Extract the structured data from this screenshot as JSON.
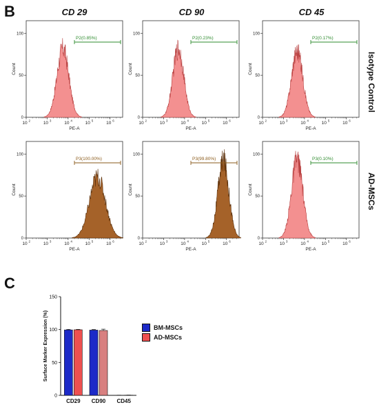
{
  "panels": {
    "b_label": "B",
    "c_label": "C"
  },
  "column_titles": [
    "CD 29",
    "CD 90",
    "CD 45"
  ],
  "row_titles": [
    "Isotype Control",
    "AD-MSCs"
  ],
  "colors": {
    "control_fill": "#f28a8a",
    "control_edge": "#b84040",
    "positive_fill": "#a05a1e",
    "positive_edge": "#5a2e08",
    "gate_green": "#2e8b2e",
    "gate_brown": "#8a5a1a",
    "bm_bar": "#1c2ac8",
    "ad_bar": "#ee5050",
    "ad_bar_faded": "#d88080"
  },
  "histograms": [
    {
      "row": 0,
      "col": 0,
      "gate_label": "P2(0.85%)",
      "gate_style": "green",
      "peak_log": 3.75,
      "width_log": 0.28,
      "fill": "control",
      "gate_from": 4.3,
      "gate_to": 6.5,
      "peak_height": 88
    },
    {
      "row": 0,
      "col": 1,
      "gate_label": "P2(0.23%)",
      "gate_style": "green",
      "peak_log": 3.7,
      "width_log": 0.26,
      "fill": "control",
      "gate_from": 4.3,
      "gate_to": 6.5,
      "peak_height": 88
    },
    {
      "row": 0,
      "col": 2,
      "gate_label": "P2(0.17%)",
      "gate_style": "green",
      "peak_log": 3.65,
      "width_log": 0.27,
      "fill": "control",
      "gate_from": 4.3,
      "gate_to": 6.5,
      "peak_height": 85
    },
    {
      "row": 1,
      "col": 0,
      "gate_label": "P3(100.00%)",
      "gate_style": "brown",
      "peak_log": 5.4,
      "width_log": 0.38,
      "fill": "positive",
      "gate_from": 4.3,
      "gate_to": 6.5,
      "peak_height": 78
    },
    {
      "row": 1,
      "col": 1,
      "gate_label": "P3(99.80%)",
      "gate_style": "brown",
      "peak_log": 5.85,
      "width_log": 0.26,
      "fill": "positive",
      "gate_from": 4.3,
      "gate_to": 6.5,
      "peak_height": 100
    },
    {
      "row": 1,
      "col": 2,
      "gate_label": "P3(0.10%)",
      "gate_style": "green",
      "peak_log": 3.65,
      "width_log": 0.27,
      "fill": "control",
      "gate_from": 4.3,
      "gate_to": 6.5,
      "peak_height": 100
    }
  ],
  "histogram_axes": {
    "xlabel": "PE-A",
    "ylabel": "Count",
    "x_ticks": [
      {
        "exp": "2",
        "pos": 2
      },
      {
        "exp": "3",
        "pos": 3
      },
      {
        "exp": "4",
        "pos": 4
      },
      {
        "exp": "5",
        "pos": 5
      },
      {
        "exp": "6",
        "pos": 6
      }
    ],
    "y_ticks": [
      0,
      50,
      100
    ],
    "xlim_log": [
      2,
      6.6
    ],
    "ylim": [
      0,
      115
    ]
  },
  "chart_data": {
    "type": "bar",
    "categories": [
      "CD29",
      "CD90",
      "CD45"
    ],
    "ylabel": "Surface Marker Expression (%)",
    "ylim": [
      0,
      150
    ],
    "y_ticks": [
      0,
      50,
      100,
      150
    ],
    "series": [
      {
        "name": "BM-MSCs",
        "values": [
          99.5,
          99.2,
          0.2
        ],
        "errors": [
          0.8,
          0.9,
          0.1
        ]
      },
      {
        "name": "AD-MSCs",
        "values": [
          99.7,
          98.6,
          0.3
        ],
        "errors": [
          0.6,
          2.0,
          0.1
        ]
      }
    ],
    "legend_position": "right"
  }
}
